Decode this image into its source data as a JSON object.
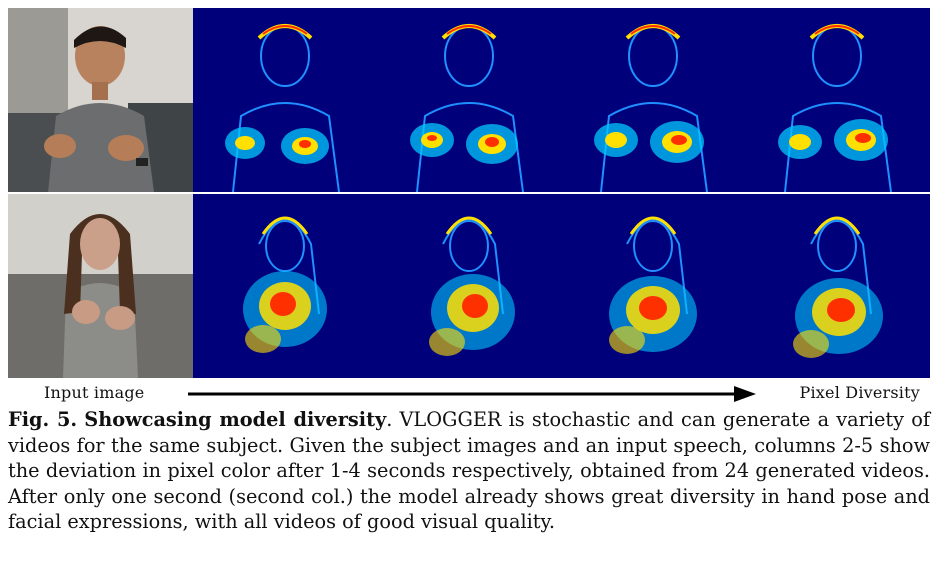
{
  "figure": {
    "rows": [
      {
        "subject": "man",
        "input": "input-photo-man",
        "heatmaps": [
          "t1",
          "t2",
          "t3",
          "t4"
        ]
      },
      {
        "subject": "woman",
        "input": "input-photo-woman",
        "heatmaps": [
          "t1",
          "t2",
          "t3",
          "t4"
        ]
      }
    ]
  },
  "axis": {
    "left_label": "Input image",
    "right_label": "Pixel Diversity"
  },
  "caption": {
    "label": "Fig. 5.",
    "title": "Showcasing model diversity",
    "body": ". VLOGGER is stochastic and can generate a variety of videos for the same subject. Given the subject images and an input speech, columns 2-5 show the deviation in pixel color after 1-4 seconds respectively, obtained from 24 generated videos. After only one second (second col.) the model already shows great diversity in hand pose and facial expressions, with all videos of good visual quality."
  },
  "colors": {
    "heatmap_background": "#00007a",
    "heatmap_edge": "#1e90ff",
    "heatmap_hot": "#ff3000",
    "heatmap_warm": "#ffe000",
    "heatmap_mid": "#00e0ff"
  }
}
